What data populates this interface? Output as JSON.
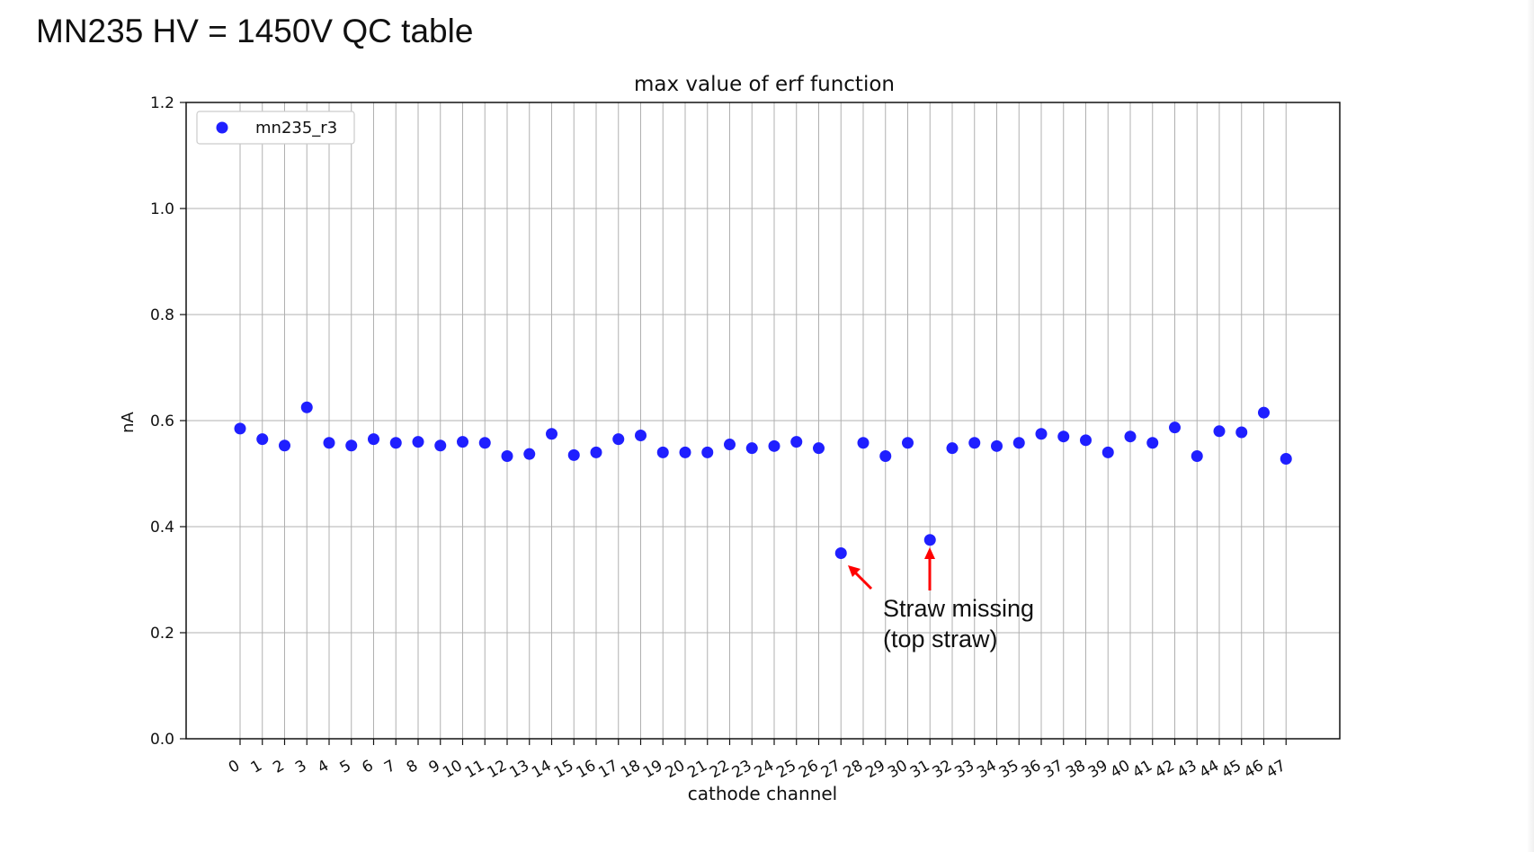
{
  "slide": {
    "title": "MN235 HV = 1450V QC table"
  },
  "annotation": {
    "line1": "Straw missing",
    "line2": "(top straw)",
    "color": "#ff0000",
    "points_to_channels": [
      27,
      31
    ]
  },
  "chart_data": {
    "type": "scatter",
    "title": "max value of erf function",
    "xlabel": "cathode channel",
    "ylabel": "nA",
    "ylim": [
      0.0,
      1.2
    ],
    "yticks": [
      "0.0",
      "0.2",
      "0.4",
      "0.6",
      "0.8",
      "1.0",
      "1.2"
    ],
    "grid": true,
    "legend_position": "top-left",
    "x": [
      0,
      1,
      2,
      3,
      4,
      5,
      6,
      7,
      8,
      9,
      10,
      11,
      12,
      13,
      14,
      15,
      16,
      17,
      18,
      19,
      20,
      21,
      22,
      23,
      24,
      25,
      26,
      27,
      28,
      29,
      30,
      31,
      32,
      33,
      34,
      35,
      36,
      37,
      38,
      39,
      40,
      41,
      42,
      43,
      44,
      45,
      46,
      47
    ],
    "series": [
      {
        "name": "mn235_r3",
        "color": "#1f1fff",
        "values": [
          0.585,
          0.565,
          0.553,
          0.625,
          0.558,
          0.553,
          0.565,
          0.558,
          0.56,
          0.553,
          0.56,
          0.558,
          0.533,
          0.537,
          0.575,
          0.535,
          0.54,
          0.565,
          0.572,
          0.54,
          0.54,
          0.54,
          0.555,
          0.548,
          0.552,
          0.56,
          0.548,
          0.35,
          0.558,
          0.533,
          0.558,
          0.375,
          0.548,
          0.558,
          0.552,
          0.558,
          0.575,
          0.57,
          0.563,
          0.54,
          0.57,
          0.558,
          0.587,
          0.533,
          0.58,
          0.578,
          0.615,
          0.528
        ]
      }
    ]
  }
}
